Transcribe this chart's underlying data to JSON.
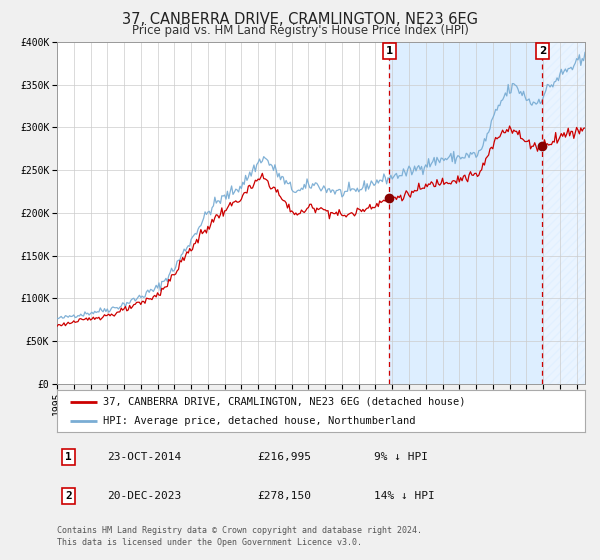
{
  "title": "37, CANBERRA DRIVE, CRAMLINGTON, NE23 6EG",
  "subtitle": "Price paid vs. HM Land Registry's House Price Index (HPI)",
  "ylim": [
    0,
    400000
  ],
  "xlim_start": 1995.0,
  "xlim_end": 2026.5,
  "yticks": [
    0,
    50000,
    100000,
    150000,
    200000,
    250000,
    300000,
    350000,
    400000
  ],
  "ytick_labels": [
    "£0",
    "£50K",
    "£100K",
    "£150K",
    "£200K",
    "£250K",
    "£300K",
    "£350K",
    "£400K"
  ],
  "xticks": [
    1995,
    1996,
    1997,
    1998,
    1999,
    2000,
    2001,
    2002,
    2003,
    2004,
    2005,
    2006,
    2007,
    2008,
    2009,
    2010,
    2011,
    2012,
    2013,
    2014,
    2015,
    2016,
    2017,
    2018,
    2019,
    2020,
    2021,
    2022,
    2023,
    2024,
    2025,
    2026
  ],
  "hpi_color": "#7aadd4",
  "property_color": "#cc0000",
  "marker_color": "#880000",
  "vline_color": "#cc0000",
  "shade_color": "#ddeeff",
  "grid_color": "#cccccc",
  "background_color": "#f0f0f0",
  "plot_bg_color": "#ffffff",
  "sale1_x": 2014.81,
  "sale1_y": 216995,
  "sale2_x": 2023.96,
  "sale2_y": 278150,
  "legend_property": "37, CANBERRA DRIVE, CRAMLINGTON, NE23 6EG (detached house)",
  "legend_hpi": "HPI: Average price, detached house, Northumberland",
  "table_row1": [
    "1",
    "23-OCT-2014",
    "£216,995",
    "9% ↓ HPI"
  ],
  "table_row2": [
    "2",
    "20-DEC-2023",
    "£278,150",
    "14% ↓ HPI"
  ],
  "footer1": "Contains HM Land Registry data © Crown copyright and database right 2024.",
  "footer2": "This data is licensed under the Open Government Licence v3.0.",
  "title_fontsize": 10.5,
  "subtitle_fontsize": 8.5,
  "tick_fontsize": 7,
  "legend_fontsize": 7.5,
  "table_fontsize": 8,
  "footer_fontsize": 6
}
